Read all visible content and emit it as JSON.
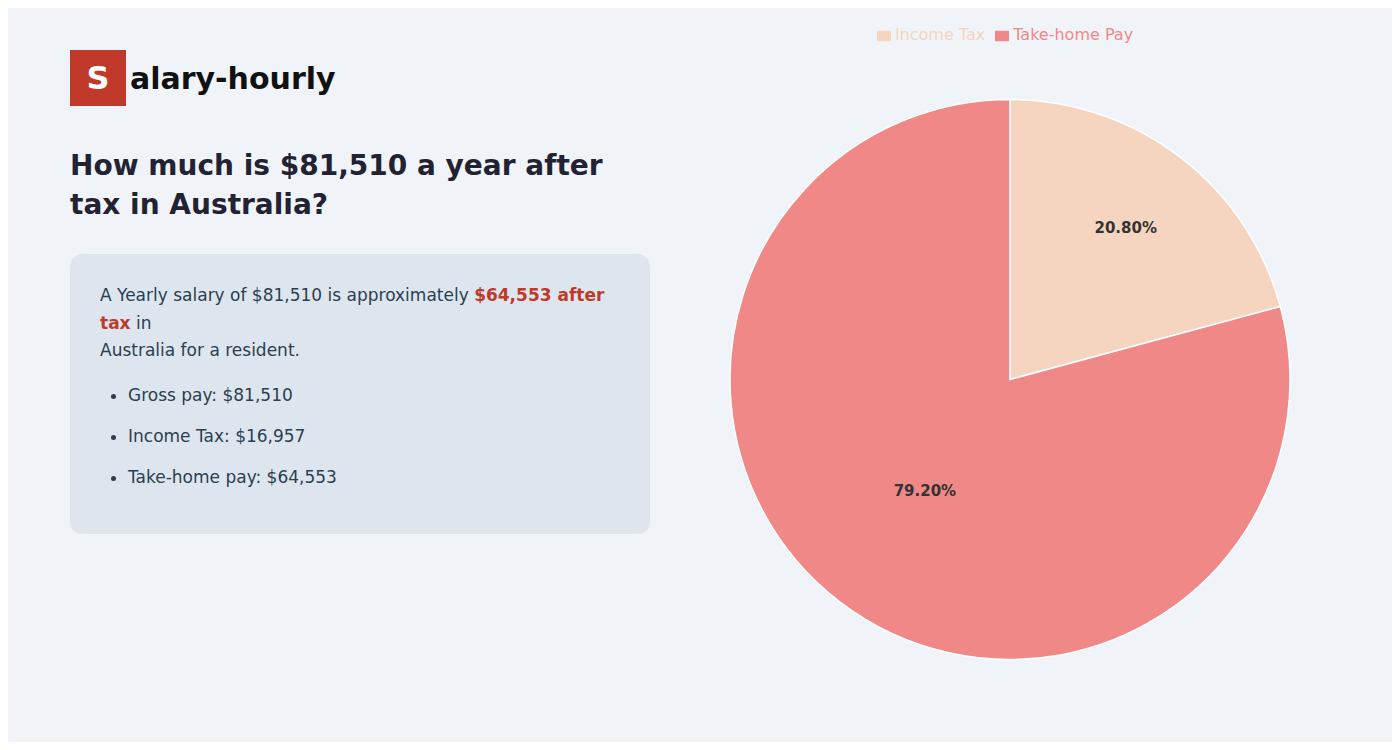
{
  "chart_data": {
    "type": "pie",
    "title": "How much is $81,510 a year after tax in Australia?",
    "categories": [
      "Income Tax",
      "Take-home Pay"
    ],
    "values": [
      20.8,
      79.2
    ],
    "value_labels": [
      "20.80%",
      "79.20%"
    ],
    "colors": [
      "#f5d5c0",
      "#f08888"
    ],
    "data_labels": true,
    "legend": "top",
    "annotations": [
      {
        "text": "S",
        "color": "#c0392b"
      },
      {
        "text": "alary-hourly"
      },
      {
        "text": "A Yearly salary of $81,510 is approximately "
      },
      {
        "text": "$64,553 after tax",
        "color": "#c0392b"
      },
      {
        "text": " in"
      },
      {
        "text": "Australia for a resident."
      },
      {
        "text": "Gross pay: $81,510"
      },
      {
        "text": "Income Tax: $16,957"
      },
      {
        "text": "Take-home pay: $64,553"
      }
    ]
  }
}
